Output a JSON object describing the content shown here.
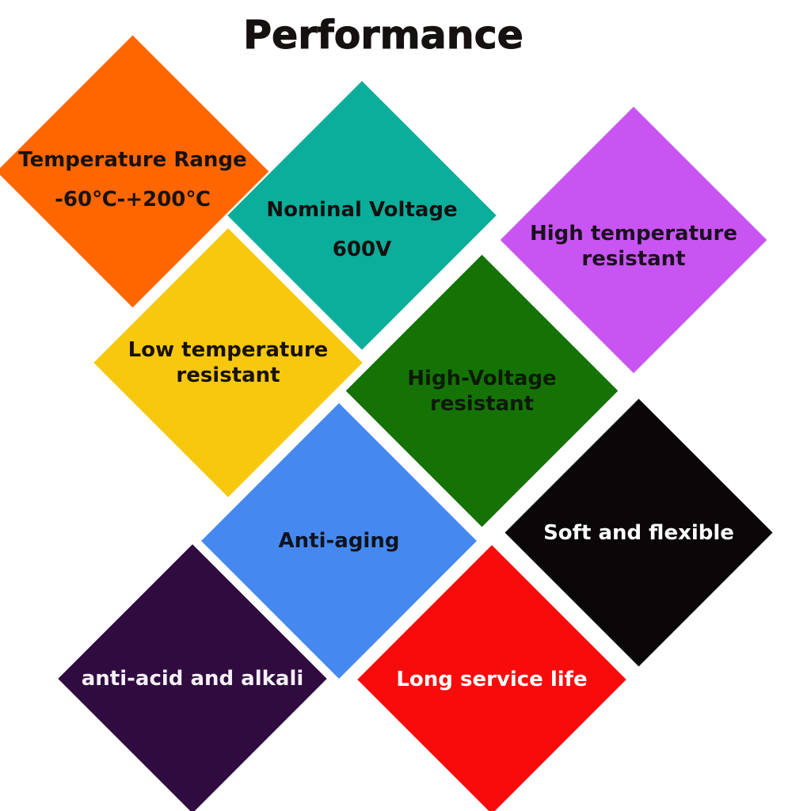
{
  "title": "Performance",
  "diamonds": [
    {
      "id": "temperature-range",
      "color": "#FF6600",
      "text_color": "#181210",
      "lines": [
        "Temperature Range",
        "-60℃-+200℃"
      ]
    },
    {
      "id": "nominal-voltage",
      "color": "#0BAD9B",
      "text_color": "#14100E",
      "lines": [
        "Nominal Voltage",
        "600V"
      ]
    },
    {
      "id": "high-temperature-resistant",
      "color": "#C855F2",
      "text_color": "#1C1020",
      "lines": [
        "High temperature",
        "resistant"
      ]
    },
    {
      "id": "low-temperature-resistant",
      "color": "#F7C80D",
      "text_color": "#181208",
      "lines": [
        "Low temperature",
        "resistant"
      ]
    },
    {
      "id": "high-voltage-resistant",
      "color": "#157306",
      "text_color": "#0D1A06",
      "lines": [
        "High-Voltage",
        "resistant"
      ]
    },
    {
      "id": "soft-and-flexible",
      "color": "#0B0708",
      "text_color": "#FFFFFF",
      "lines": [
        "Soft and flexible"
      ]
    },
    {
      "id": "anti-aging",
      "color": "#4589F0",
      "text_color": "#10131E",
      "lines": [
        "Anti-aging"
      ]
    },
    {
      "id": "anti-acid-and-alkali",
      "color": "#300B40",
      "text_color": "#F4F1F6",
      "lines": [
        "anti-acid and alkali"
      ]
    },
    {
      "id": "long-service-life",
      "color": "#FA0B0B",
      "text_color": "#FFFFFF",
      "lines": [
        "Long service life"
      ]
    }
  ]
}
